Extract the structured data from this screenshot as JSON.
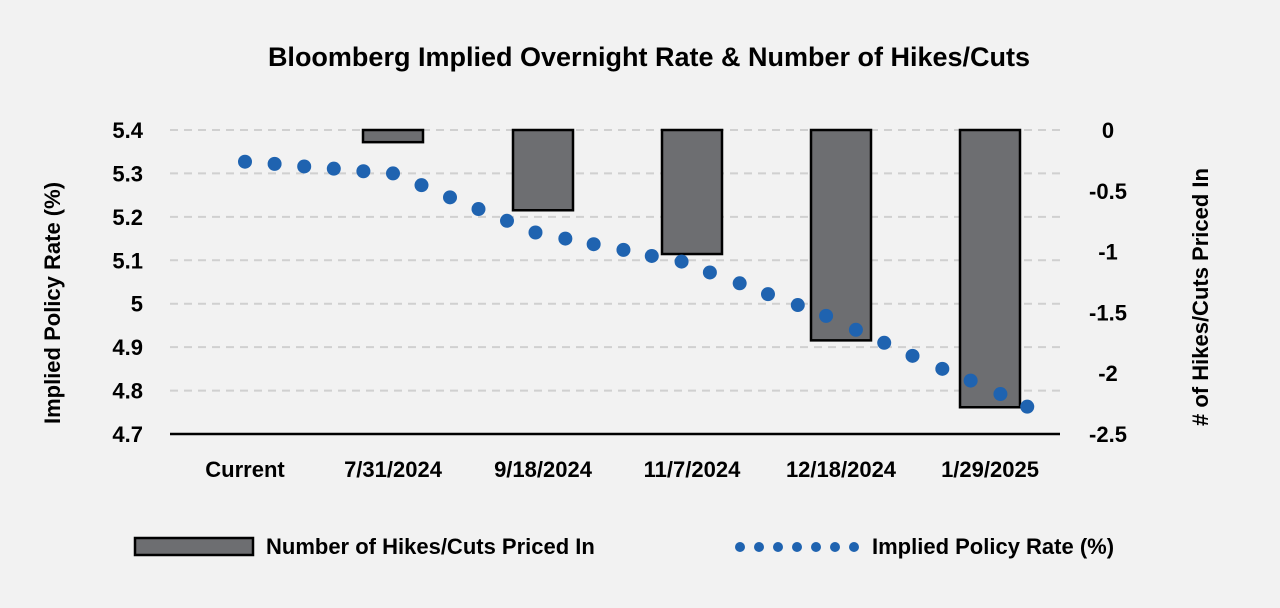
{
  "chart_data": {
    "type": "bar+scatter",
    "title": "Bloomberg Implied Overnight Rate & Number of Hikes/Cuts",
    "categories": [
      "Current",
      "7/31/2024",
      "9/18/2024",
      "11/7/2024",
      "12/18/2024",
      "1/29/2025"
    ],
    "y_left": {
      "label": "Implied Policy Rate (%)",
      "ticks": [
        "5.4",
        "5.3",
        "5.2",
        "5.1",
        "5",
        "4.9",
        "4.8",
        "4.7"
      ],
      "range": [
        4.7,
        5.4
      ]
    },
    "y_right": {
      "label": "# of Hikes/Cuts Priced In",
      "ticks": [
        "0",
        "-0.5",
        "-1",
        "-1.5",
        "-2",
        "-2.5"
      ],
      "range": [
        -2.5,
        0
      ]
    },
    "series": [
      {
        "name": "Number of Hikes/Cuts Priced In",
        "type": "bar",
        "axis": "right",
        "color": "#6d6e71",
        "values": [
          0,
          -0.1,
          -0.66,
          -1.02,
          -1.73,
          -2.28
        ]
      },
      {
        "name": "Implied Policy Rate (%)",
        "type": "scatter",
        "axis": "left",
        "color": "#1f63b0",
        "points": [
          [
            0.0,
            5.327
          ],
          [
            0.2,
            5.322
          ],
          [
            0.4,
            5.316
          ],
          [
            0.6,
            5.311
          ],
          [
            0.8,
            5.305
          ],
          [
            1.0,
            5.3
          ],
          [
            1.19,
            5.273
          ],
          [
            1.38,
            5.245
          ],
          [
            1.57,
            5.218
          ],
          [
            1.76,
            5.191
          ],
          [
            1.95,
            5.164
          ],
          [
            2.15,
            5.15
          ],
          [
            2.34,
            5.137
          ],
          [
            2.54,
            5.124
          ],
          [
            2.73,
            5.11
          ],
          [
            2.93,
            5.097
          ],
          [
            3.12,
            5.072
          ],
          [
            3.32,
            5.047
          ],
          [
            3.51,
            5.022
          ],
          [
            3.71,
            4.997
          ],
          [
            3.9,
            4.972
          ],
          [
            4.1,
            4.94
          ],
          [
            4.29,
            4.91
          ],
          [
            4.48,
            4.88
          ],
          [
            4.68,
            4.85
          ],
          [
            4.87,
            4.823
          ],
          [
            5.07,
            4.792
          ],
          [
            5.25,
            4.763
          ]
        ]
      }
    ],
    "legend": {
      "position": "bottom",
      "bar_label": "Number of Hikes/Cuts Priced In",
      "dot_label": "Implied Policy Rate (%)"
    },
    "grid": "horizontal dashed"
  }
}
